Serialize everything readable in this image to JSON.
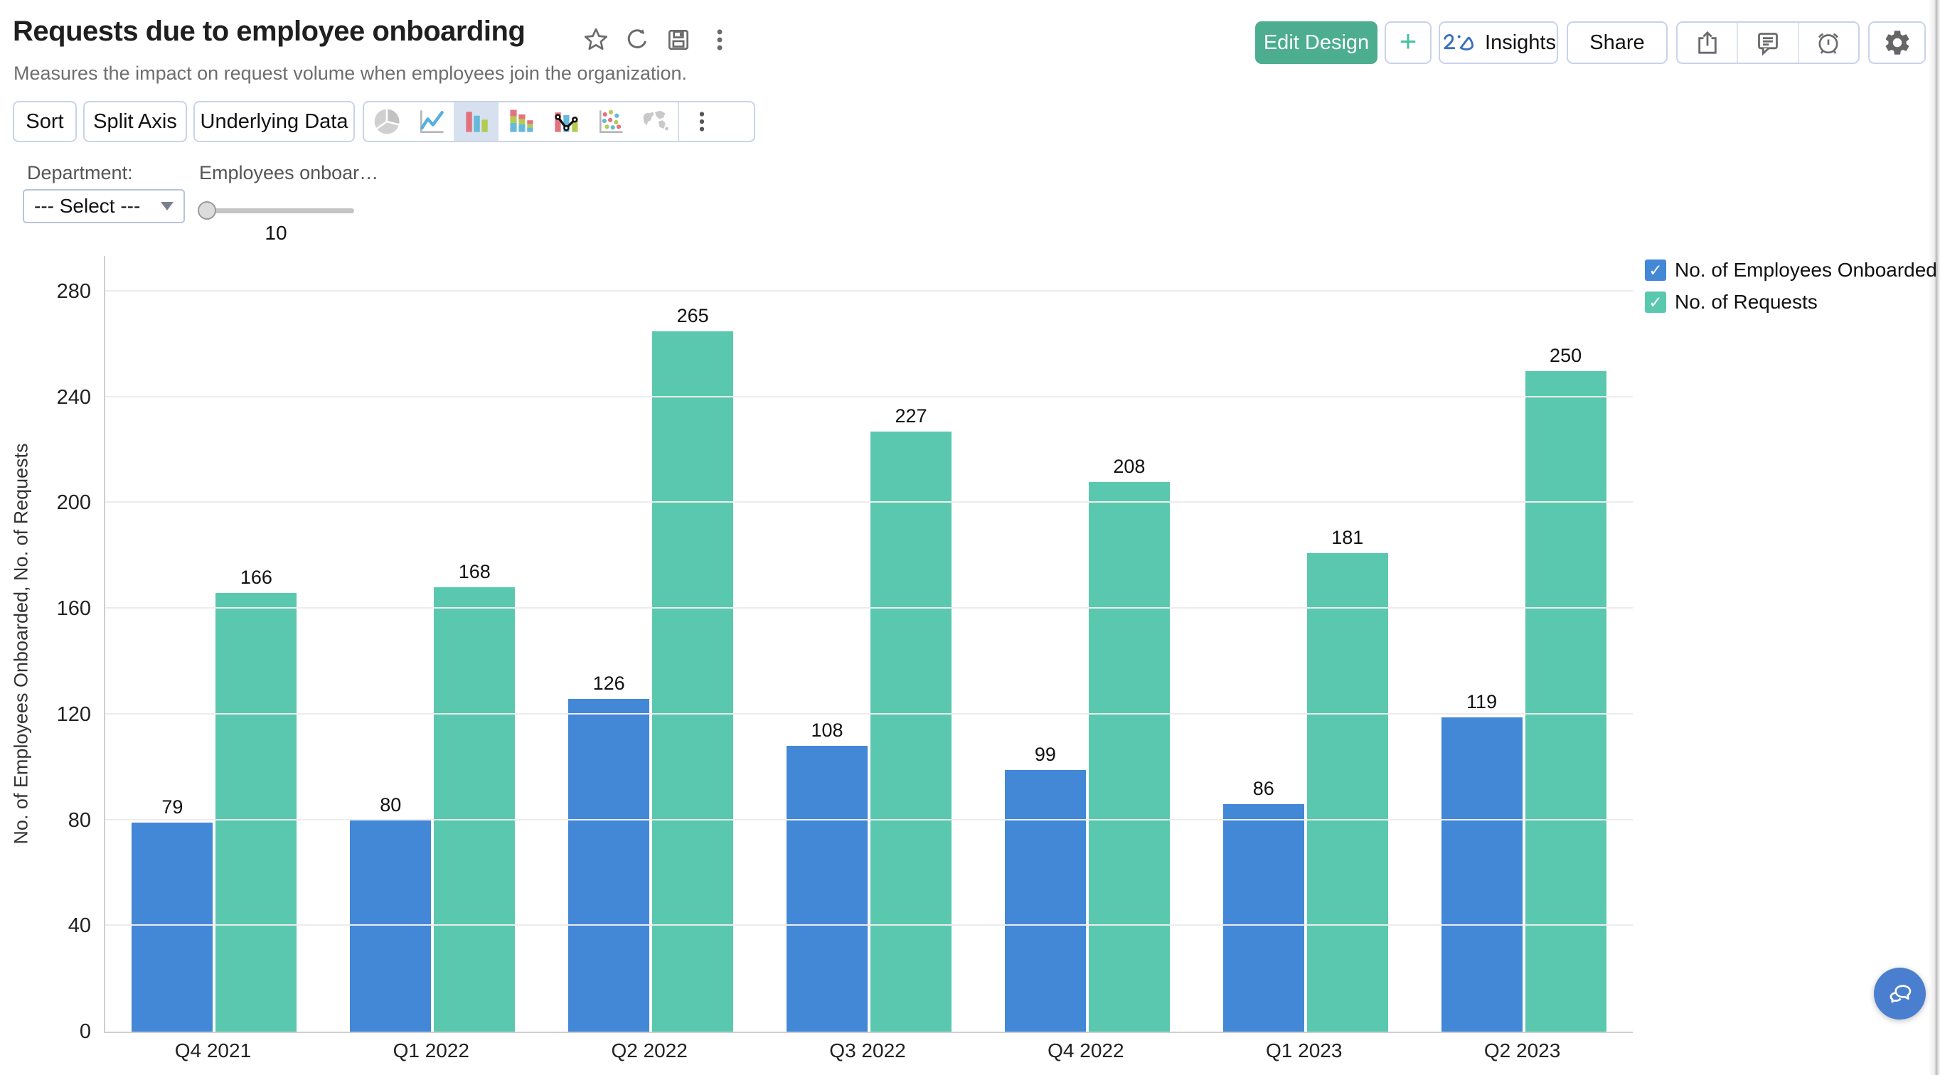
{
  "header": {
    "title": "Requests due to employee onboarding",
    "subtitle": "Measures the impact on request volume when employees join the organization.",
    "title_icons": [
      "favorite-star",
      "refresh",
      "save",
      "more-options"
    ],
    "actions": {
      "edit_design": "Edit Design",
      "add": "+",
      "zia": "Zia",
      "insights": "Insights",
      "share": "Share"
    }
  },
  "toolbar": {
    "buttons": [
      "Sort",
      "Split Axis",
      "Underlying Data"
    ],
    "chart_types": [
      "pie",
      "line",
      "bar",
      "stacked-bar",
      "combination",
      "scatter",
      "map"
    ],
    "selected_chart_type": "bar"
  },
  "filters": {
    "department": {
      "label": "Department:",
      "value": "--- Select ---"
    },
    "employees_onboarded": {
      "label": "Employees onboar…",
      "value": "10"
    }
  },
  "legend": [
    {
      "label": "No. of Employees Onboarded",
      "color": "#4387d7",
      "checked": true
    },
    {
      "label": "No. of Requests",
      "color": "#5ac8ae",
      "checked": true
    }
  ],
  "chart_data": {
    "type": "bar",
    "title": "Requests due to employee onboarding",
    "categories": [
      "Q4 2021",
      "Q1 2022",
      "Q2 2022",
      "Q3 2022",
      "Q4 2022",
      "Q1 2023",
      "Q2 2023"
    ],
    "series": [
      {
        "name": "No. of Employees Onboarded",
        "color": "#4387d7",
        "values": [
          79,
          80,
          126,
          108,
          99,
          86,
          119
        ]
      },
      {
        "name": "No. of Requests",
        "color": "#5ac8ae",
        "values": [
          166,
          168,
          265,
          227,
          208,
          181,
          250
        ]
      }
    ],
    "xlabel": "",
    "ylabel": "No. of Employees Onboarded, No. of Requests",
    "yticks": [
      0,
      40,
      80,
      120,
      160,
      200,
      240,
      280
    ],
    "ylim": [
      0,
      280
    ],
    "grid": true,
    "legend_position": "top-right",
    "bar_value_labels": true
  },
  "colors": {
    "primary_button": "#4cad8f",
    "add_button_plus": "#47bfa0",
    "zia_logo_blue": "#3a6fc0",
    "chat_fab": "#4a7fd0",
    "selected_chart_type_bg": "#d7e0ef"
  }
}
